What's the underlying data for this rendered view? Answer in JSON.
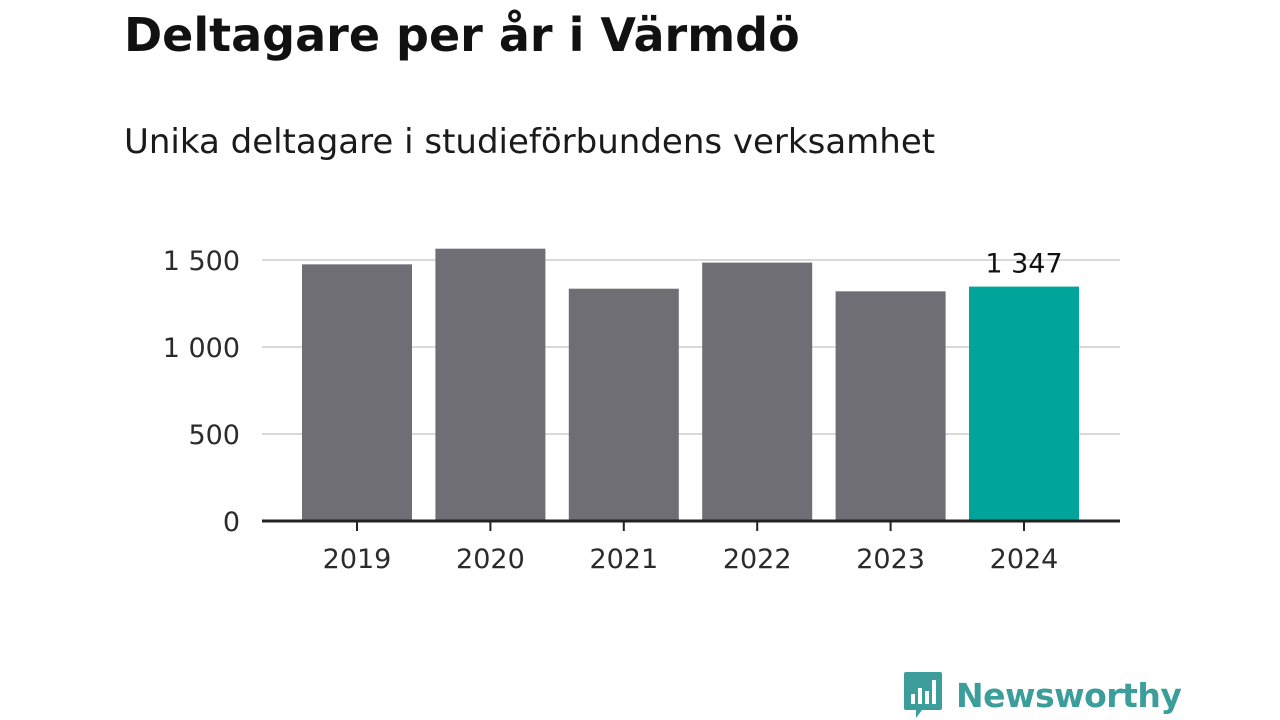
{
  "title": "Deltagare per år i Värmdö",
  "subtitle": "Unika deltagare i studieförbundens verksamhet",
  "chart_data": {
    "type": "bar",
    "categories": [
      "2019",
      "2020",
      "2021",
      "2022",
      "2023",
      "2024"
    ],
    "values": [
      1475,
      1565,
      1335,
      1485,
      1320,
      1347
    ],
    "ylim": [
      0,
      1500
    ],
    "yticks": [
      0,
      500,
      1000,
      1500
    ],
    "ytick_labels": [
      "0",
      "500",
      "1 000",
      "1 500"
    ],
    "grid": true,
    "highlight_index": 5,
    "highlight_label": "1 347",
    "colors": {
      "bar": "#6f6e74",
      "highlight": "#00a49a",
      "grid": "#d9d9d9",
      "axis": "#222222"
    }
  },
  "brand": {
    "name": "Newsworthy",
    "color": "#3b9e9a",
    "icon": "newsworthy-logo-icon"
  }
}
